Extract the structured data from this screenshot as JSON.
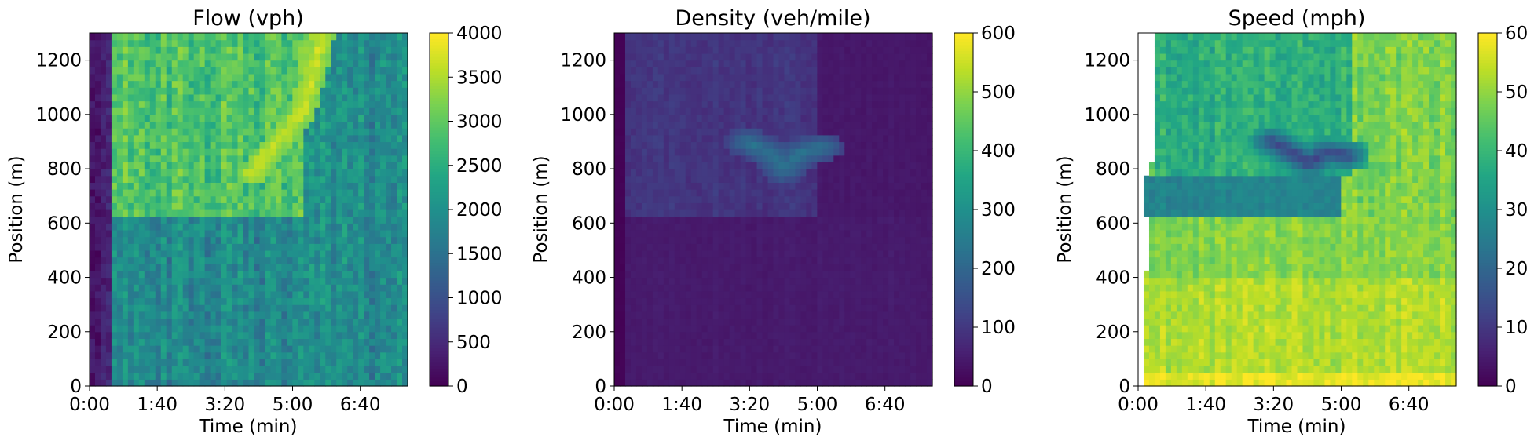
{
  "chart_data": [
    {
      "type": "heatmap",
      "title": "Flow (vph)",
      "xlabel": "Time (min)",
      "ylabel": "Position (m)",
      "x_ticks": [
        "0:00",
        "1:40",
        "3:20",
        "5:00",
        "6:40"
      ],
      "x_tick_values_min": [
        0,
        1.6667,
        3.3333,
        5,
        6.6667
      ],
      "xlim_min": [
        0,
        7.833
      ],
      "y_ticks": [
        "0",
        "200",
        "400",
        "600",
        "800",
        "1000",
        "1200"
      ],
      "y_tick_values": [
        0,
        200,
        400,
        600,
        800,
        1000,
        1200
      ],
      "ylim": [
        0,
        1300
      ],
      "colorbar_ticks": [
        "0",
        "500",
        "1000",
        "1500",
        "2000",
        "2500",
        "3000",
        "3500",
        "4000"
      ],
      "colorbar_values": [
        0,
        500,
        1000,
        1500,
        2000,
        2500,
        3000,
        3500,
        4000
      ],
      "vmin": 0,
      "vmax": 4000,
      "colormap": "viridis",
      "regions": [
        {
          "description": "upstream baseline",
          "y_range": [
            0,
            625
          ],
          "t_range_min": [
            0.6,
            7.833
          ],
          "value": 1900,
          "noise": 350
        },
        {
          "description": "downstream after bottleneck",
          "y_range": [
            625,
            1300
          ],
          "t_range_min": [
            0.6,
            5.2
          ],
          "value": 2850,
          "noise": 350
        },
        {
          "description": "downstream late",
          "y_range": [
            625,
            1300
          ],
          "t_range_min": [
            5.2,
            7.833
          ],
          "value": 1950,
          "noise": 350
        },
        {
          "description": "startup ramp",
          "y_range": [
            0,
            1300
          ],
          "t_range_min": [
            0,
            0.6
          ],
          "value": 300,
          "noise": 200
        }
      ],
      "hot_streak": {
        "points_min_m": [
          [
            4.0,
            780
          ],
          [
            4.5,
            880
          ],
          [
            5.2,
            1000
          ],
          [
            5.5,
            1150
          ],
          [
            5.7,
            1300
          ]
        ],
        "value": 3700
      }
    },
    {
      "type": "heatmap",
      "title": "Density (veh/mile)",
      "xlabel": "Time (min)",
      "ylabel": "Position (m)",
      "x_ticks": [
        "0:00",
        "1:40",
        "3:20",
        "5:00",
        "6:40"
      ],
      "x_tick_values_min": [
        0,
        1.6667,
        3.3333,
        5,
        6.6667
      ],
      "xlim_min": [
        0,
        7.833
      ],
      "y_ticks": [
        "0",
        "200",
        "400",
        "600",
        "800",
        "1000",
        "1200"
      ],
      "y_tick_values": [
        0,
        200,
        400,
        600,
        800,
        1000,
        1200
      ],
      "ylim": [
        0,
        1300
      ],
      "colorbar_ticks": [
        "0",
        "100",
        "200",
        "300",
        "400",
        "500",
        "600"
      ],
      "colorbar_values": [
        0,
        100,
        200,
        300,
        400,
        500,
        600
      ],
      "vmin": 0,
      "vmax": 600,
      "colormap": "viridis",
      "regions": [
        {
          "description": "upstream baseline",
          "y_range": [
            0,
            625
          ],
          "t_range_min": [
            0,
            7.833
          ],
          "value": 45,
          "noise": 6
        },
        {
          "description": "queue region",
          "y_range": [
            625,
            1300
          ],
          "t_range_min": [
            0,
            5.0
          ],
          "value": 95,
          "noise": 15
        },
        {
          "description": "downstream late",
          "y_range": [
            625,
            1300
          ],
          "t_range_min": [
            5.0,
            7.833
          ],
          "value": 40,
          "noise": 6
        },
        {
          "description": "startup",
          "y_range": [
            0,
            1300
          ],
          "t_range_min": [
            0,
            0.3
          ],
          "value": 5,
          "noise": 3
        }
      ],
      "congestion_band": {
        "points_min_m": [
          [
            3.3,
            900
          ],
          [
            3.9,
            850
          ],
          [
            4.2,
            800
          ],
          [
            4.6,
            860
          ],
          [
            5.1,
            880
          ]
        ],
        "value": 230
      }
    },
    {
      "type": "heatmap",
      "title": "Speed (mph)",
      "xlabel": "Time (min)",
      "ylabel": "Position (m)",
      "x_ticks": [
        "0:00",
        "1:40",
        "3:20",
        "5:00",
        "6:40"
      ],
      "x_tick_values_min": [
        0,
        1.6667,
        3.3333,
        5,
        6.6667
      ],
      "xlim_min": [
        0,
        7.833
      ],
      "y_ticks": [
        "0",
        "200",
        "400",
        "600",
        "800",
        "1000",
        "1200"
      ],
      "y_tick_values": [
        0,
        200,
        400,
        600,
        800,
        1000,
        1200
      ],
      "ylim": [
        0,
        1300
      ],
      "colorbar_ticks": [
        "0",
        "10",
        "20",
        "30",
        "40",
        "50",
        "60"
      ],
      "colorbar_values": [
        0,
        10,
        20,
        30,
        40,
        50,
        60
      ],
      "vmin": 0,
      "vmax": 60,
      "colormap": "viridis",
      "regions": [
        {
          "description": "near bottom",
          "y_range": [
            0,
            60
          ],
          "t_range_min": [
            0,
            7.833
          ],
          "value": 58,
          "noise": 3
        },
        {
          "description": "upstream",
          "y_range": [
            60,
            400
          ],
          "t_range_min": [
            0,
            7.833
          ],
          "value": 53,
          "noise": 3
        },
        {
          "description": "mid section",
          "y_range": [
            400,
            625
          ],
          "t_range_min": [
            0,
            7.833
          ],
          "value": 49,
          "noise": 3
        },
        {
          "description": "bottleneck band",
          "y_range": [
            625,
            775
          ],
          "t_range_min": [
            0.1,
            5.0
          ],
          "value": 27,
          "noise": 2
        },
        {
          "description": "upper queue",
          "y_range": [
            775,
            1300
          ],
          "t_range_min": [
            0.4,
            5.2
          ],
          "value": 38,
          "noise": 4
        },
        {
          "description": "upper recovered",
          "y_range": [
            625,
            1300
          ],
          "t_range_min": [
            5.2,
            7.833
          ],
          "value": 48,
          "noise": 4
        }
      ],
      "slow_band": {
        "points_min_m": [
          [
            3.3,
            900
          ],
          [
            3.9,
            850
          ],
          [
            4.2,
            820
          ],
          [
            4.6,
            860
          ],
          [
            5.1,
            850
          ]
        ],
        "value": 12
      },
      "blank_startup": "white (no data) in the early columns, extent growing with position"
    }
  ]
}
